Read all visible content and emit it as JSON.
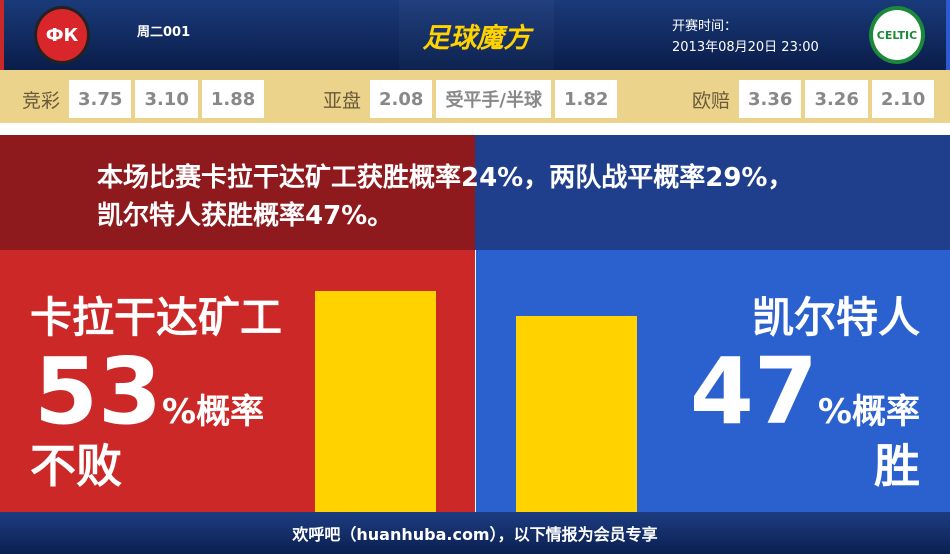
{
  "header": {
    "home_logo_text": "ФК",
    "away_logo_text": "CELTIC",
    "match_no": "周二001",
    "brand": "足球魔方",
    "kickoff_label": "开赛时间：",
    "kickoff_time": "2013年08月20日 23:00"
  },
  "odds": {
    "jingcai": {
      "label": "竞彩",
      "values": [
        "3.75",
        "3.10",
        "1.88"
      ]
    },
    "yapan": {
      "label": "亚盘",
      "values": [
        "2.08",
        "受平手/半球",
        "1.82"
      ]
    },
    "oupei": {
      "label": "欧赔",
      "values": [
        "3.36",
        "3.26",
        "2.10"
      ]
    }
  },
  "summary": "本场比赛卡拉干达矿工获胜概率24%，两队战平概率29%，凯尔特人获胜概率47%。",
  "home": {
    "name": "卡拉干达矿工",
    "percent": 53,
    "percent_text": "53",
    "pct_suffix": "%概率",
    "result": "不败",
    "color": "#cc2828"
  },
  "away": {
    "name": "凯尔特人",
    "percent": 47,
    "percent_text": "47",
    "pct_suffix": "%概率",
    "result": "胜",
    "color": "#2b61cf"
  },
  "bar_color": "#ffd200",
  "footer": "欢呼吧（huanhuba.com），以下情报为会员专享"
}
